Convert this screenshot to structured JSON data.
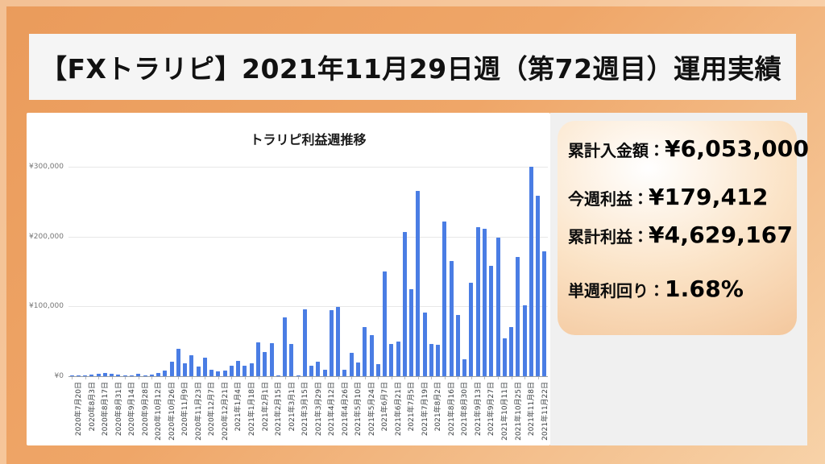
{
  "page": {
    "title": "【FXトラリピ】2021年11月29日週（第72週目）運用実績"
  },
  "stats": {
    "items": [
      {
        "label": "累計入金額：",
        "value": "¥6,053,000"
      },
      {
        "label": "今週利益：",
        "value": "¥179,412"
      },
      {
        "label": "累計利益：",
        "value": "¥4,629,167"
      },
      {
        "label": "単週利回り：",
        "value": "1.68%"
      }
    ]
  },
  "chart_data": {
    "type": "bar",
    "title": "トラリピ利益週推移",
    "xlabel": "",
    "ylabel": "",
    "ylim": [
      0,
      300000
    ],
    "grid": true,
    "legend": false,
    "bar_color": "#4a7de4",
    "yticks": [
      0,
      100000,
      200000,
      300000
    ],
    "ytick_labels": [
      "¥0",
      "¥100,000",
      "¥200,000",
      "¥300,000"
    ],
    "note": "weekly profit, one bar per week; x labels shown every second week",
    "categories": [
      "2020年7月20日",
      "2020年8月3日",
      "2020年8月17日",
      "2020年8月31日",
      "2020年9月14日",
      "2020年9月28日",
      "2020年10月12日",
      "2020年10月26日",
      "2020年11月9日",
      "2020年11月23日",
      "2020年12月7日",
      "2020年12月21日",
      "2021年1月4日",
      "2021年1月18日",
      "2021年2月1日",
      "2021年2月15日",
      "2021年3月1日",
      "2021年3月15日",
      "2021年3月29日",
      "2021年4月12日",
      "2021年4月26日",
      "2021年5月10日",
      "2021年5月24日",
      "2021年6月7日",
      "2021年6月21日",
      "2021年7月5日",
      "2021年7月19日",
      "2021年8月2日",
      "2021年8月16日",
      "2021年8月30日",
      "2021年9月13日",
      "2021年9月27日",
      "2021年10月11日",
      "2021年10月25日",
      "2021年11月8日",
      "2021年11月22日"
    ],
    "values": [
      800,
      1500,
      1200,
      2300,
      4000,
      5000,
      3100,
      2300,
      1200,
      1200,
      3000,
      1500,
      1900,
      5000,
      7700,
      21000,
      39000,
      19000,
      30000,
      13500,
      26000,
      8800,
      6500,
      7700,
      15000,
      21500,
      15000,
      18900,
      49000,
      35000,
      47000,
      1000,
      84000,
      46000,
      1000,
      95500,
      15000,
      21000,
      8800,
      95000,
      99000,
      8800,
      34000,
      20000,
      70000,
      59000,
      17000,
      150000,
      46000,
      50000,
      206000,
      125000,
      265000,
      91000,
      46500,
      44600,
      222000,
      165000,
      88000,
      24000,
      134000,
      213000,
      211000,
      158000,
      198000,
      54000,
      70000,
      171000,
      101000,
      300000,
      258000,
      179412
    ]
  },
  "colors": {
    "frame_orange": "#ec9f60",
    "frame_light": "#f6d0a4",
    "bar_blue": "#4a7de4",
    "panel_peach": "#f1bd8e",
    "card_white": "#ffffff",
    "right_col_gray": "#f0f0f0",
    "title_bg": "#f5f5f5"
  }
}
